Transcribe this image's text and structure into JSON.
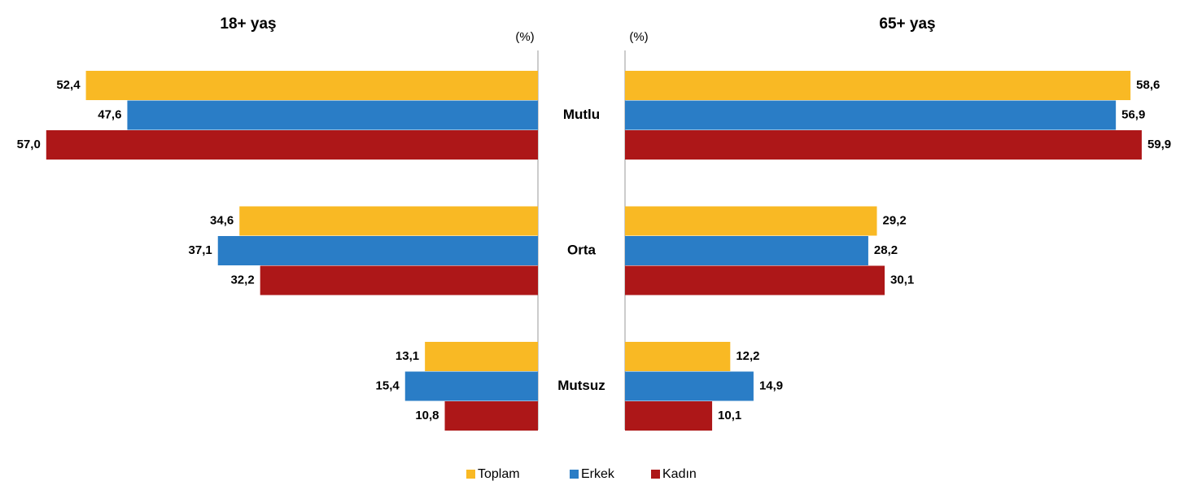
{
  "chart_data": [
    {
      "type": "bar",
      "title": "18+ yaş",
      "unit": "(%)",
      "categories": [
        "Mutlu",
        "Orta",
        "Mutsuz"
      ],
      "xlim": [
        0,
        60
      ],
      "series": [
        {
          "name": "Toplam",
          "color": "#f9b924",
          "values": [
            52.4,
            34.6,
            13.1
          ],
          "value_labels": [
            "52,4",
            "34,6",
            "13,1"
          ]
        },
        {
          "name": "Erkek",
          "color": "#2a7dc6",
          "values": [
            47.6,
            37.1,
            15.4
          ],
          "value_labels": [
            "47,6",
            "37,1",
            "15,4"
          ]
        },
        {
          "name": "Kadın",
          "color": "#ad1718",
          "values": [
            57.0,
            32.2,
            10.8
          ],
          "value_labels": [
            "57,0",
            "32,2",
            "10,8"
          ]
        }
      ]
    },
    {
      "type": "bar",
      "title": "65+ yaş",
      "unit": "(%)",
      "xlim": [
        0,
        60
      ],
      "series": [
        {
          "color": "#f9b924",
          "values": [
            58.6,
            29.2,
            12.2
          ],
          "value_labels": [
            "58,6",
            "29,2",
            "12,2"
          ]
        },
        {
          "color": "#2a7dc6",
          "values": [
            56.9,
            28.2,
            14.9
          ],
          "value_labels": [
            "56,9",
            "28,2",
            "14,9"
          ]
        },
        {
          "color": "#ad1718",
          "values": [
            59.9,
            30.1,
            10.1
          ],
          "value_labels": [
            "59,9",
            "30,1",
            "10,1"
          ]
        }
      ]
    }
  ]
}
